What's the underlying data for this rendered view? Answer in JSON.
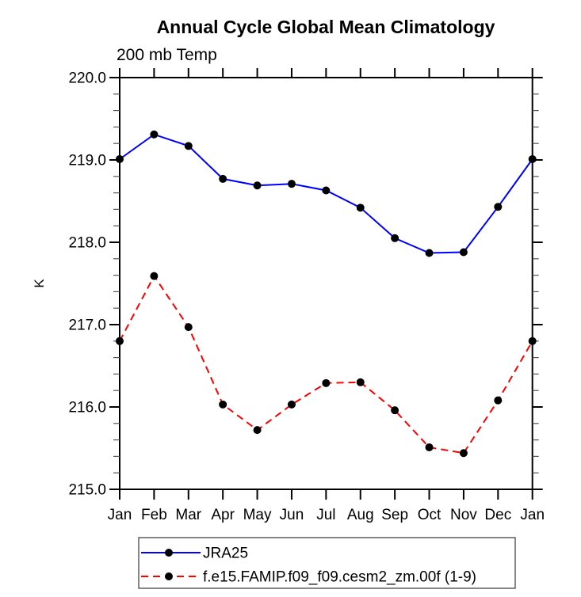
{
  "chart_data": {
    "type": "line",
    "title": "Annual Cycle Global Mean Climatology",
    "subtitle": "200 mb Temp",
    "ylabel": "K",
    "ylim": [
      215.0,
      220.0
    ],
    "ytick_interval": 1.0,
    "ytick_minor_interval": 0.2,
    "ytick_labels": [
      "220.0",
      "219.0",
      "218.0",
      "217.0",
      "216.0",
      "215.0"
    ],
    "categories": [
      "Jan",
      "Feb",
      "Mar",
      "Apr",
      "May",
      "Jun",
      "Jul",
      "Aug",
      "Sep",
      "Oct",
      "Nov",
      "Dec",
      "Jan"
    ],
    "grid": false,
    "legend_position": "bottom",
    "axis_color": "#000000",
    "marker_color": "#000000",
    "series": [
      {
        "name": "JRA25",
        "color": "#0000ff",
        "line_style": "solid",
        "marker": "circle",
        "values": [
          219.01,
          219.31,
          219.17,
          218.77,
          218.69,
          218.71,
          218.63,
          218.42,
          218.05,
          217.87,
          217.88,
          218.43,
          219.01
        ]
      },
      {
        "name": "f.e15.FAMIP.f09_f09.cesm2_zm.00f (1-9)",
        "color": "#ff0000",
        "line_style": "dashed",
        "marker": "circle",
        "values": [
          216.8,
          217.59,
          216.97,
          216.03,
          215.72,
          216.03,
          216.29,
          216.3,
          215.96,
          215.51,
          215.44,
          216.08,
          216.8
        ]
      }
    ]
  }
}
